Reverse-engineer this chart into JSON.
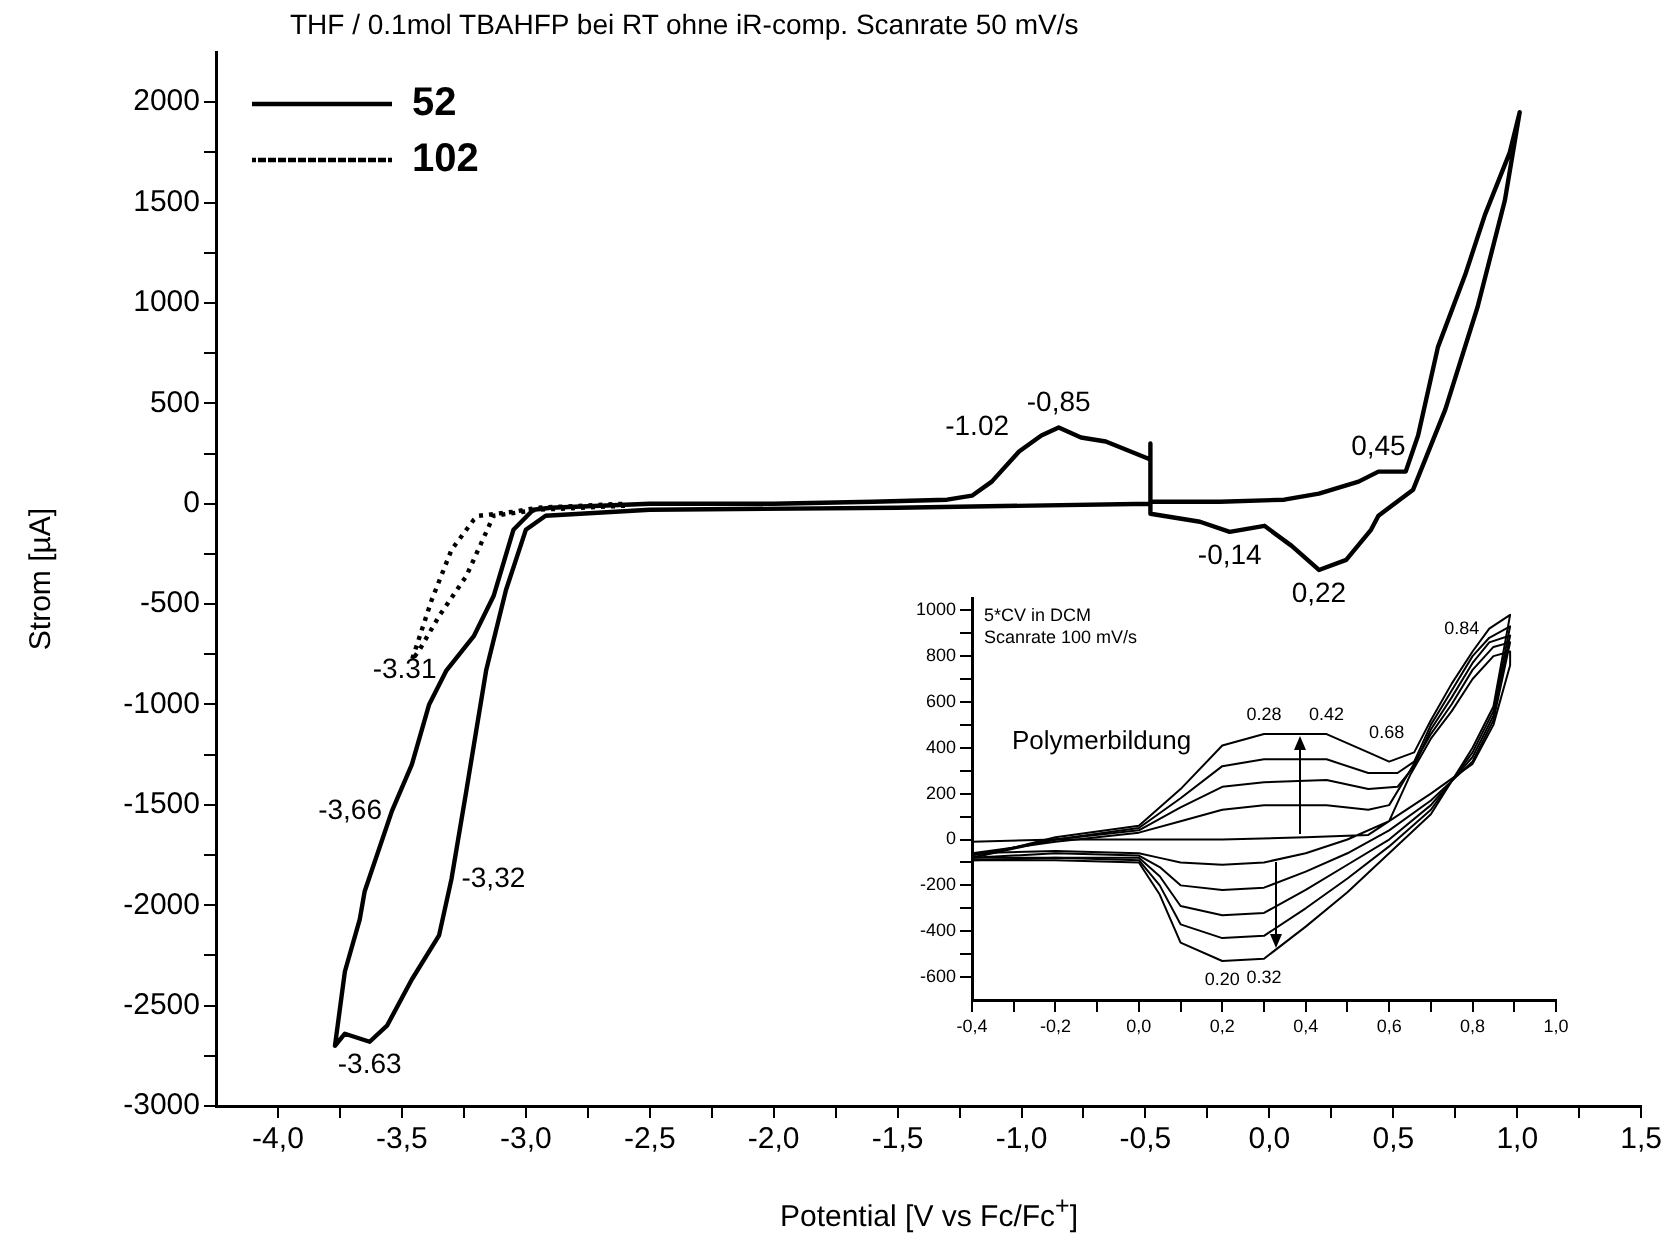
{
  "chart_data": [
    {
      "type": "line",
      "title": "THF / 0.1mol TBAHFP bei RT ohne iR-comp. Scanrate 50 mV/s",
      "xlabel": "Potential [V vs Fc/Fc$^{+}$]",
      "ylabel": "Strom [µA]",
      "xlim": [
        -4.25,
        1.5
      ],
      "ylim": [
        -3000,
        2250
      ],
      "xticks": [
        {
          "value": -4,
          "label": "-4,0"
        },
        {
          "value": -3.75,
          "label": null
        },
        {
          "value": -3.5,
          "label": "-3,5"
        },
        {
          "value": -3.25,
          "label": null
        },
        {
          "value": -3,
          "label": "-3,0"
        },
        {
          "value": -2.75,
          "label": null
        },
        {
          "value": -2.5,
          "label": "-2,5"
        },
        {
          "value": -2.25,
          "label": null
        },
        {
          "value": -2,
          "label": "-2,0"
        },
        {
          "value": -1.75,
          "label": null
        },
        {
          "value": -1.5,
          "label": "-1,5"
        },
        {
          "value": -1.25,
          "label": null
        },
        {
          "value": -1,
          "label": "-1,0"
        },
        {
          "value": -0.75,
          "label": null
        },
        {
          "value": -0.5,
          "label": "-0,5"
        },
        {
          "value": -0.25,
          "label": null
        },
        {
          "value": 0,
          "label": "0,0"
        },
        {
          "value": 0.25,
          "label": null
        },
        {
          "value": 0.5,
          "label": "0,5"
        },
        {
          "value": 0.75,
          "label": null
        },
        {
          "value": 1,
          "label": "1,0"
        },
        {
          "value": 1.25,
          "label": null
        },
        {
          "value": 1.5,
          "label": "1,5"
        }
      ],
      "yticks": [
        -3000,
        {
          "value": -2750,
          "label": null
        },
        -2500,
        {
          "value": -2250,
          "label": null
        },
        -2000,
        {
          "value": -1750,
          "label": null
        },
        -1500,
        {
          "value": -1250,
          "label": null
        },
        -1000,
        {
          "value": -750,
          "label": null
        },
        -500,
        {
          "value": -250,
          "label": null
        },
        0,
        {
          "value": 250,
          "label": null
        },
        500,
        {
          "value": 750,
          "label": null
        },
        1000,
        {
          "value": 1250,
          "label": null
        },
        1500,
        {
          "value": 1750,
          "label": null
        },
        2000
      ],
      "grid": false,
      "legend": "top left",
      "marker": "none",
      "series": [
        {
          "name": "52",
          "color": "#000000",
          "line_style": "solid",
          "x": [
            -0.48,
            -0.48,
            -0.48,
            -0.66,
            -0.76,
            -0.85,
            -0.92,
            -1.01,
            -1.12,
            -1.2,
            -1.3,
            -1.6,
            -2.0,
            -2.5,
            -2.9,
            -2.97,
            -3.05,
            -3.13,
            -3.21,
            -3.32,
            -3.39,
            -3.46,
            -3.54,
            -3.65,
            -3.67,
            -3.73,
            -3.77,
            -3.73,
            -3.63,
            -3.56,
            -3.46,
            -3.35,
            -3.3,
            -3.24,
            -3.16,
            -3.08,
            -3.0,
            -2.92,
            -2.5,
            -1.5,
            -0.48,
            -0.48,
            -0.28,
            -0.16,
            -0.02,
            0.09,
            0.2,
            0.31,
            0.41,
            0.44,
            0.58,
            0.71,
            0.84,
            0.95,
            1.01,
            0.97,
            0.87,
            0.79,
            0.68,
            0.6,
            0.55,
            0.44,
            0.36,
            0.2,
            0.06,
            -0.2,
            -0.48
          ],
          "values": [
            0,
            300,
            220,
            310,
            330,
            380,
            340,
            260,
            110,
            40,
            20,
            10,
            0,
            0,
            -20,
            -30,
            -130,
            -460,
            -660,
            -830,
            -1000,
            -1300,
            -1530,
            -1930,
            -2070,
            -2330,
            -2700,
            -2640,
            -2680,
            -2600,
            -2370,
            -2150,
            -1870,
            -1430,
            -830,
            -430,
            -130,
            -60,
            -30,
            -20,
            0,
            -50,
            -90,
            -140,
            -110,
            -210,
            -330,
            -280,
            -130,
            -60,
            70,
            470,
            980,
            1510,
            1950,
            1750,
            1440,
            1140,
            780,
            340,
            160,
            160,
            110,
            50,
            20,
            10,
            10
          ]
        },
        {
          "name": "102",
          "color": "#000000",
          "line_style": "dotted",
          "x": [
            -2.6,
            -2.95,
            -3.13,
            -3.24,
            -3.35,
            -3.43,
            -3.46,
            -3.38,
            -3.3,
            -3.21,
            -3.19,
            -3.05,
            -2.95,
            -2.6
          ],
          "values": [
            -10,
            -30,
            -60,
            -360,
            -560,
            -730,
            -780,
            -480,
            -230,
            -80,
            -60,
            -40,
            -20,
            0
          ]
        }
      ],
      "annotations": [
        {
          "text": "-1.02",
          "x": -1.01,
          "y": 260
        },
        {
          "text": "-0,85",
          "x": -0.85,
          "y": 380
        },
        {
          "text": "0,45",
          "x": 0.44,
          "y": 160
        },
        {
          "text": "-0,14",
          "x": -0.16,
          "y": -140
        },
        {
          "text": "0,22",
          "x": 0.2,
          "y": -330
        },
        {
          "text": "-3.31",
          "x": -3.32,
          "y": -830
        },
        {
          "text": "-3,66",
          "x": -3.54,
          "y": -1530
        },
        {
          "text": "-3,32",
          "x": -3.3,
          "y": -1870
        },
        {
          "text": "-3.63",
          "x": -3.63,
          "y": -2680
        }
      ]
    },
    {
      "type": "line",
      "xlim": [
        -0.4,
        1.0
      ],
      "ylim": [
        -700,
        1050
      ],
      "xticks": [
        {
          "value": -0.4,
          "label": "-0,4"
        },
        {
          "value": -0.3,
          "label": null
        },
        {
          "value": -0.2,
          "label": "-0,2"
        },
        {
          "value": -0.1,
          "label": null
        },
        {
          "value": 0,
          "label": "0,0"
        },
        {
          "value": 0.1,
          "label": null
        },
        {
          "value": 0.2,
          "label": "0,2"
        },
        {
          "value": 0.3,
          "label": null
        },
        {
          "value": 0.4,
          "label": "0,4"
        },
        {
          "value": 0.5,
          "label": null
        },
        {
          "value": 0.6,
          "label": "0,6"
        },
        {
          "value": 0.7,
          "label": null
        },
        {
          "value": 0.8,
          "label": "0,8"
        },
        {
          "value": 0.9,
          "label": null
        },
        {
          "value": 1,
          "label": "1,0"
        }
      ],
      "yticks": [
        -600,
        {
          "value": -500,
          "label": null
        },
        -400,
        {
          "value": -300,
          "label": null
        },
        -200,
        {
          "value": -100,
          "label": null
        },
        0,
        {
          "value": 100,
          "label": null
        },
        200,
        {
          "value": 300,
          "label": null
        },
        400,
        {
          "value": 500,
          "label": null
        },
        600,
        {
          "value": 700,
          "label": null
        },
        800,
        {
          "value": 900,
          "label": null
        },
        1000
      ],
      "grid": false,
      "legend": false,
      "marker": "none",
      "line_style": "solid",
      "series": [
        {
          "color": "#000000",
          "x": [
            -0.4,
            -0.2,
            0.0,
            0.2,
            0.4,
            0.55,
            0.6,
            0.65,
            0.7,
            0.75,
            0.8,
            0.85,
            0.89,
            0.89,
            0.85,
            0.8,
            0.7,
            0.6,
            0.5,
            0.4,
            0.3,
            0.2,
            0.1,
            0.05,
            0.0,
            -0.2,
            -0.4
          ],
          "values": [
            -10,
            0,
            0,
            0,
            10,
            20,
            80,
            280,
            440,
            560,
            700,
            800,
            820,
            760,
            500,
            330,
            200,
            80,
            0,
            -60,
            -100,
            -110,
            -100,
            -80,
            -60,
            -50,
            -60
          ]
        },
        {
          "color": "#000000",
          "x": [
            -0.4,
            -0.2,
            0.0,
            0.1,
            0.2,
            0.3,
            0.45,
            0.55,
            0.6,
            0.65,
            0.7,
            0.75,
            0.8,
            0.85,
            0.89,
            0.85,
            0.8,
            0.7,
            0.6,
            0.5,
            0.4,
            0.3,
            0.2,
            0.1,
            0.05,
            0.0,
            -0.2,
            -0.4
          ],
          "values": [
            -60,
            -10,
            30,
            80,
            130,
            150,
            150,
            130,
            150,
            300,
            460,
            590,
            740,
            840,
            860,
            520,
            340,
            170,
            40,
            -60,
            -140,
            -210,
            -220,
            -200,
            -120,
            -70,
            -60,
            -80
          ]
        },
        {
          "color": "#000000",
          "x": [
            -0.4,
            -0.2,
            0.0,
            0.1,
            0.2,
            0.3,
            0.45,
            0.55,
            0.62,
            0.66,
            0.7,
            0.75,
            0.8,
            0.84,
            0.89,
            0.85,
            0.8,
            0.7,
            0.6,
            0.5,
            0.4,
            0.3,
            0.2,
            0.1,
            0.05,
            0.0,
            -0.2,
            -0.4
          ],
          "values": [
            -70,
            0,
            40,
            140,
            230,
            250,
            260,
            220,
            230,
            320,
            480,
            620,
            770,
            860,
            890,
            540,
            360,
            150,
            0,
            -110,
            -220,
            -320,
            -330,
            -290,
            -160,
            -80,
            -80,
            -80
          ]
        },
        {
          "color": "#000000",
          "x": [
            -0.4,
            -0.2,
            0.0,
            0.1,
            0.2,
            0.3,
            0.45,
            0.55,
            0.62,
            0.66,
            0.7,
            0.75,
            0.8,
            0.84,
            0.89,
            0.85,
            0.8,
            0.7,
            0.6,
            0.5,
            0.4,
            0.3,
            0.2,
            0.1,
            0.05,
            0.0,
            -0.2,
            -0.4
          ],
          "values": [
            -80,
            0,
            50,
            180,
            320,
            350,
            350,
            290,
            290,
            340,
            500,
            650,
            800,
            880,
            930,
            560,
            380,
            130,
            -30,
            -170,
            -300,
            -420,
            -430,
            -370,
            -200,
            -90,
            -80,
            -90
          ]
        },
        {
          "color": "#000000",
          "x": [
            -0.4,
            -0.2,
            0.0,
            0.1,
            0.2,
            0.3,
            0.45,
            0.55,
            0.6,
            0.66,
            0.7,
            0.75,
            0.8,
            0.84,
            0.89,
            0.85,
            0.8,
            0.7,
            0.6,
            0.5,
            0.4,
            0.3,
            0.2,
            0.1,
            0.05,
            0.0,
            -0.2,
            -0.4
          ],
          "values": [
            -80,
            10,
            60,
            220,
            410,
            460,
            460,
            380,
            340,
            380,
            520,
            680,
            820,
            920,
            980,
            580,
            400,
            110,
            -60,
            -230,
            -380,
            -520,
            -530,
            -450,
            -240,
            -100,
            -90,
            -90
          ]
        }
      ],
      "annotations": [
        "5*CV in DCM",
        "Scanrate 100 mV/s",
        "Polymerbildung",
        {
          "text": "0.28",
          "x": 0.3,
          "y": 460
        },
        {
          "text": "0.42",
          "x": 0.45,
          "y": 460
        },
        {
          "text": "0.68",
          "x": 0.66,
          "y": 380
        },
        {
          "text": "0.84",
          "x": 0.84,
          "y": 920
        },
        {
          "text": "0.20",
          "x": 0.2,
          "y": -530
        },
        {
          "text": "0.32",
          "x": 0.3,
          "y": -520
        }
      ]
    }
  ]
}
